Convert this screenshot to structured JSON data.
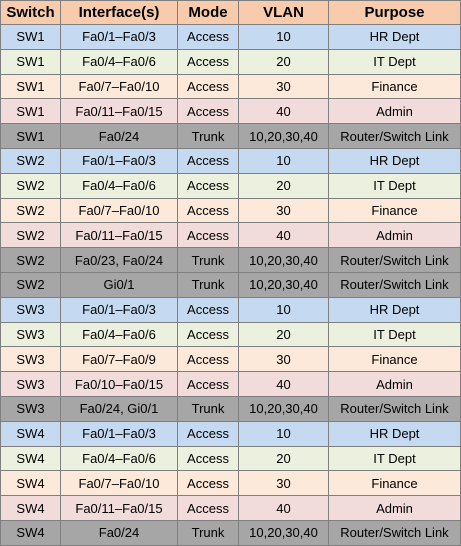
{
  "colors": {
    "header": "#f8cbad",
    "hr": "#c5d9f1",
    "it": "#ebf1de",
    "finance": "#fde9d9",
    "admin": "#f2dcdb",
    "trunk": "#a6a6a6"
  },
  "table": {
    "headers": [
      "Switch",
      "Interface(s)",
      "Mode",
      "VLAN",
      "Purpose"
    ],
    "rows": [
      {
        "switch": "SW1",
        "interfaces": "Fa0/1–Fa0/3",
        "mode": "Access",
        "vlan": "10",
        "purpose": "HR Dept",
        "color": "hr"
      },
      {
        "switch": "SW1",
        "interfaces": "Fa0/4–Fa0/6",
        "mode": "Access",
        "vlan": "20",
        "purpose": "IT Dept",
        "color": "it"
      },
      {
        "switch": "SW1",
        "interfaces": "Fa0/7–Fa0/10",
        "mode": "Access",
        "vlan": "30",
        "purpose": "Finance",
        "color": "finance"
      },
      {
        "switch": "SW1",
        "interfaces": "Fa0/11–Fa0/15",
        "mode": "Access",
        "vlan": "40",
        "purpose": "Admin",
        "color": "admin"
      },
      {
        "switch": "SW1",
        "interfaces": "Fa0/24",
        "mode": "Trunk",
        "vlan": "10,20,30,40",
        "purpose": "Router/Switch Link",
        "color": "trunk"
      },
      {
        "switch": "SW2",
        "interfaces": "Fa0/1–Fa0/3",
        "mode": "Access",
        "vlan": "10",
        "purpose": "HR Dept",
        "color": "hr"
      },
      {
        "switch": "SW2",
        "interfaces": "Fa0/4–Fa0/6",
        "mode": "Access",
        "vlan": "20",
        "purpose": "IT Dept",
        "color": "it"
      },
      {
        "switch": "SW2",
        "interfaces": "Fa0/7–Fa0/10",
        "mode": "Access",
        "vlan": "30",
        "purpose": "Finance",
        "color": "finance"
      },
      {
        "switch": "SW2",
        "interfaces": "Fa0/11–Fa0/15",
        "mode": "Access",
        "vlan": "40",
        "purpose": "Admin",
        "color": "admin"
      },
      {
        "switch": "SW2",
        "interfaces": "Fa0/23, Fa0/24",
        "mode": "Trunk",
        "vlan": "10,20,30,40",
        "purpose": "Router/Switch Link",
        "color": "trunk"
      },
      {
        "switch": "SW2",
        "interfaces": "Gi0/1",
        "mode": "Trunk",
        "vlan": "10,20,30,40",
        "purpose": "Router/Switch Link",
        "color": "trunk"
      },
      {
        "switch": "SW3",
        "interfaces": "Fa0/1–Fa0/3",
        "mode": "Access",
        "vlan": "10",
        "purpose": "HR Dept",
        "color": "hr"
      },
      {
        "switch": "SW3",
        "interfaces": "Fa0/4–Fa0/6",
        "mode": "Access",
        "vlan": "20",
        "purpose": "IT Dept",
        "color": "it"
      },
      {
        "switch": "SW3",
        "interfaces": "Fa0/7–Fa0/9",
        "mode": "Access",
        "vlan": "30",
        "purpose": "Finance",
        "color": "finance"
      },
      {
        "switch": "SW3",
        "interfaces": "Fa0/10–Fa0/15",
        "mode": "Access",
        "vlan": "40",
        "purpose": "Admin",
        "color": "admin"
      },
      {
        "switch": "SW3",
        "interfaces": "Fa0/24, Gi0/1",
        "mode": "Trunk",
        "vlan": "10,20,30,40",
        "purpose": "Router/Switch Link",
        "color": "trunk"
      },
      {
        "switch": "SW4",
        "interfaces": "Fa0/1–Fa0/3",
        "mode": "Access",
        "vlan": "10",
        "purpose": "HR Dept",
        "color": "hr"
      },
      {
        "switch": "SW4",
        "interfaces": "Fa0/4–Fa0/6",
        "mode": "Access",
        "vlan": "20",
        "purpose": "IT Dept",
        "color": "it"
      },
      {
        "switch": "SW4",
        "interfaces": "Fa0/7–Fa0/10",
        "mode": "Access",
        "vlan": "30",
        "purpose": "Finance",
        "color": "finance"
      },
      {
        "switch": "SW4",
        "interfaces": "Fa0/11–Fa0/15",
        "mode": "Access",
        "vlan": "40",
        "purpose": "Admin",
        "color": "admin"
      },
      {
        "switch": "SW4",
        "interfaces": "Fa0/24",
        "mode": "Trunk",
        "vlan": "10,20,30,40",
        "purpose": "Router/Switch Link",
        "color": "trunk"
      }
    ]
  }
}
